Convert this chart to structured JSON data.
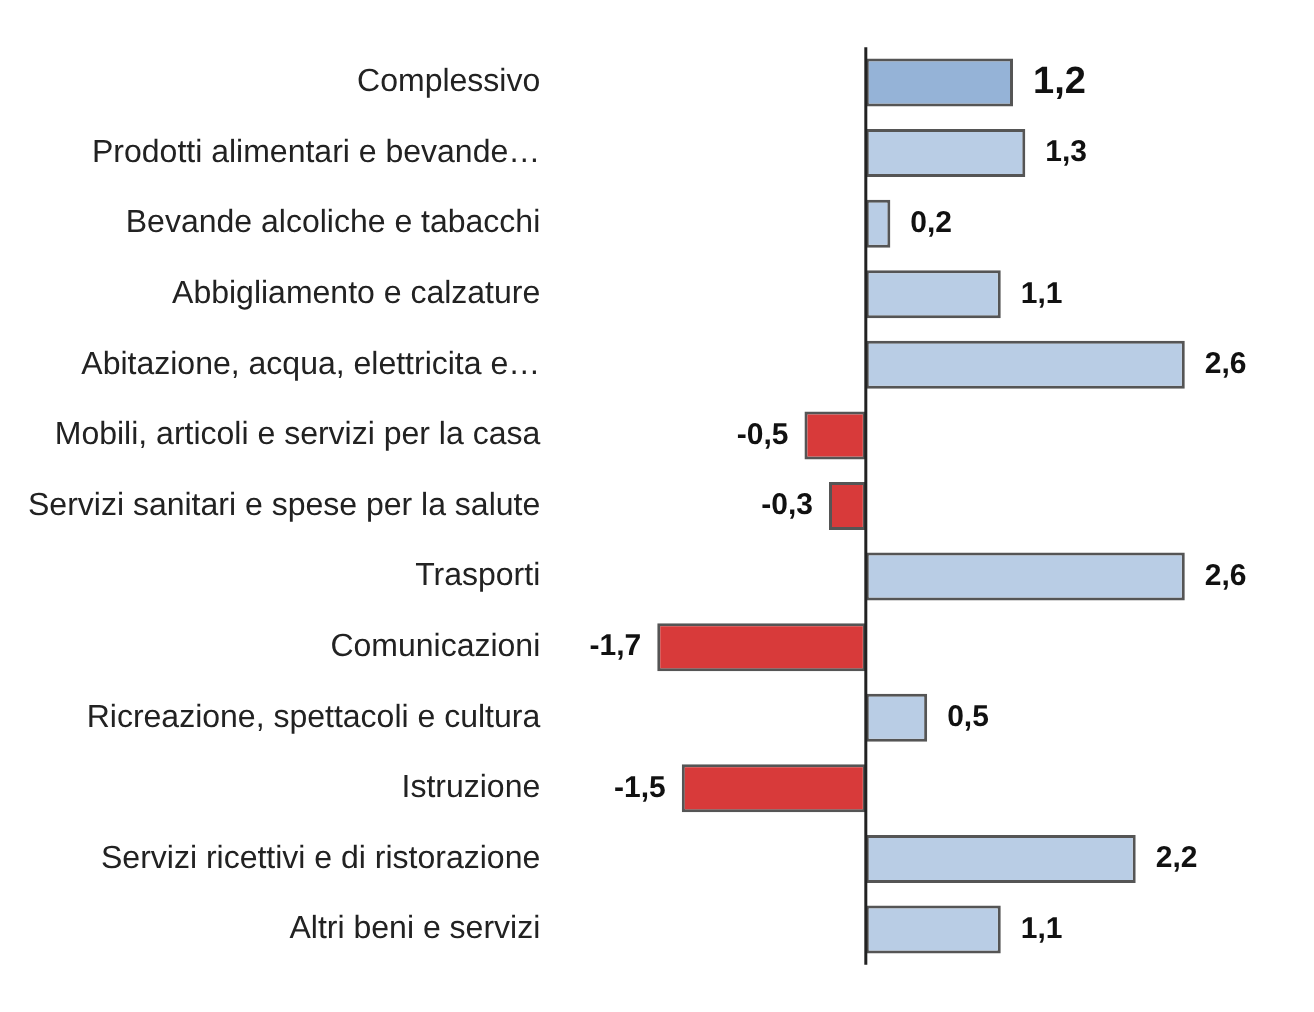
{
  "chart_data": {
    "type": "bar",
    "orientation": "horizontal",
    "categories": [
      "Complessivo",
      "Prodotti alimentari e bevande…",
      "Bevande alcoliche e tabacchi",
      "Abbigliamento e calzature",
      "Abitazione, acqua, elettricita e…",
      "Mobili, articoli e servizi per la casa",
      "Servizi sanitari e spese per la salute",
      "Trasporti",
      "Comunicazioni",
      "Ricreazione, spettacoli e cultura",
      "Istruzione",
      "Servizi ricettivi e di ristorazione",
      "Altri beni e servizi"
    ],
    "values": [
      1.2,
      1.3,
      0.2,
      1.1,
      2.6,
      -0.5,
      -0.3,
      2.6,
      -1.7,
      0.5,
      -1.5,
      2.2,
      1.1
    ],
    "value_labels": [
      "1,2",
      "1,3",
      "0,2",
      "1,1",
      "2,6",
      "-0,5",
      "-0,3",
      "2,6",
      "-1,7",
      "0,5",
      "-1,5",
      "2,2",
      "1,1"
    ],
    "colors": [
      "#95b3d7",
      "#b9cde5",
      "#b9cde5",
      "#b9cde5",
      "#b9cde5",
      "#d83a3a",
      "#d83a3a",
      "#b9cde5",
      "#d83a3a",
      "#b9cde5",
      "#d83a3a",
      "#b9cde5",
      "#b9cde5"
    ],
    "legend": false
  }
}
